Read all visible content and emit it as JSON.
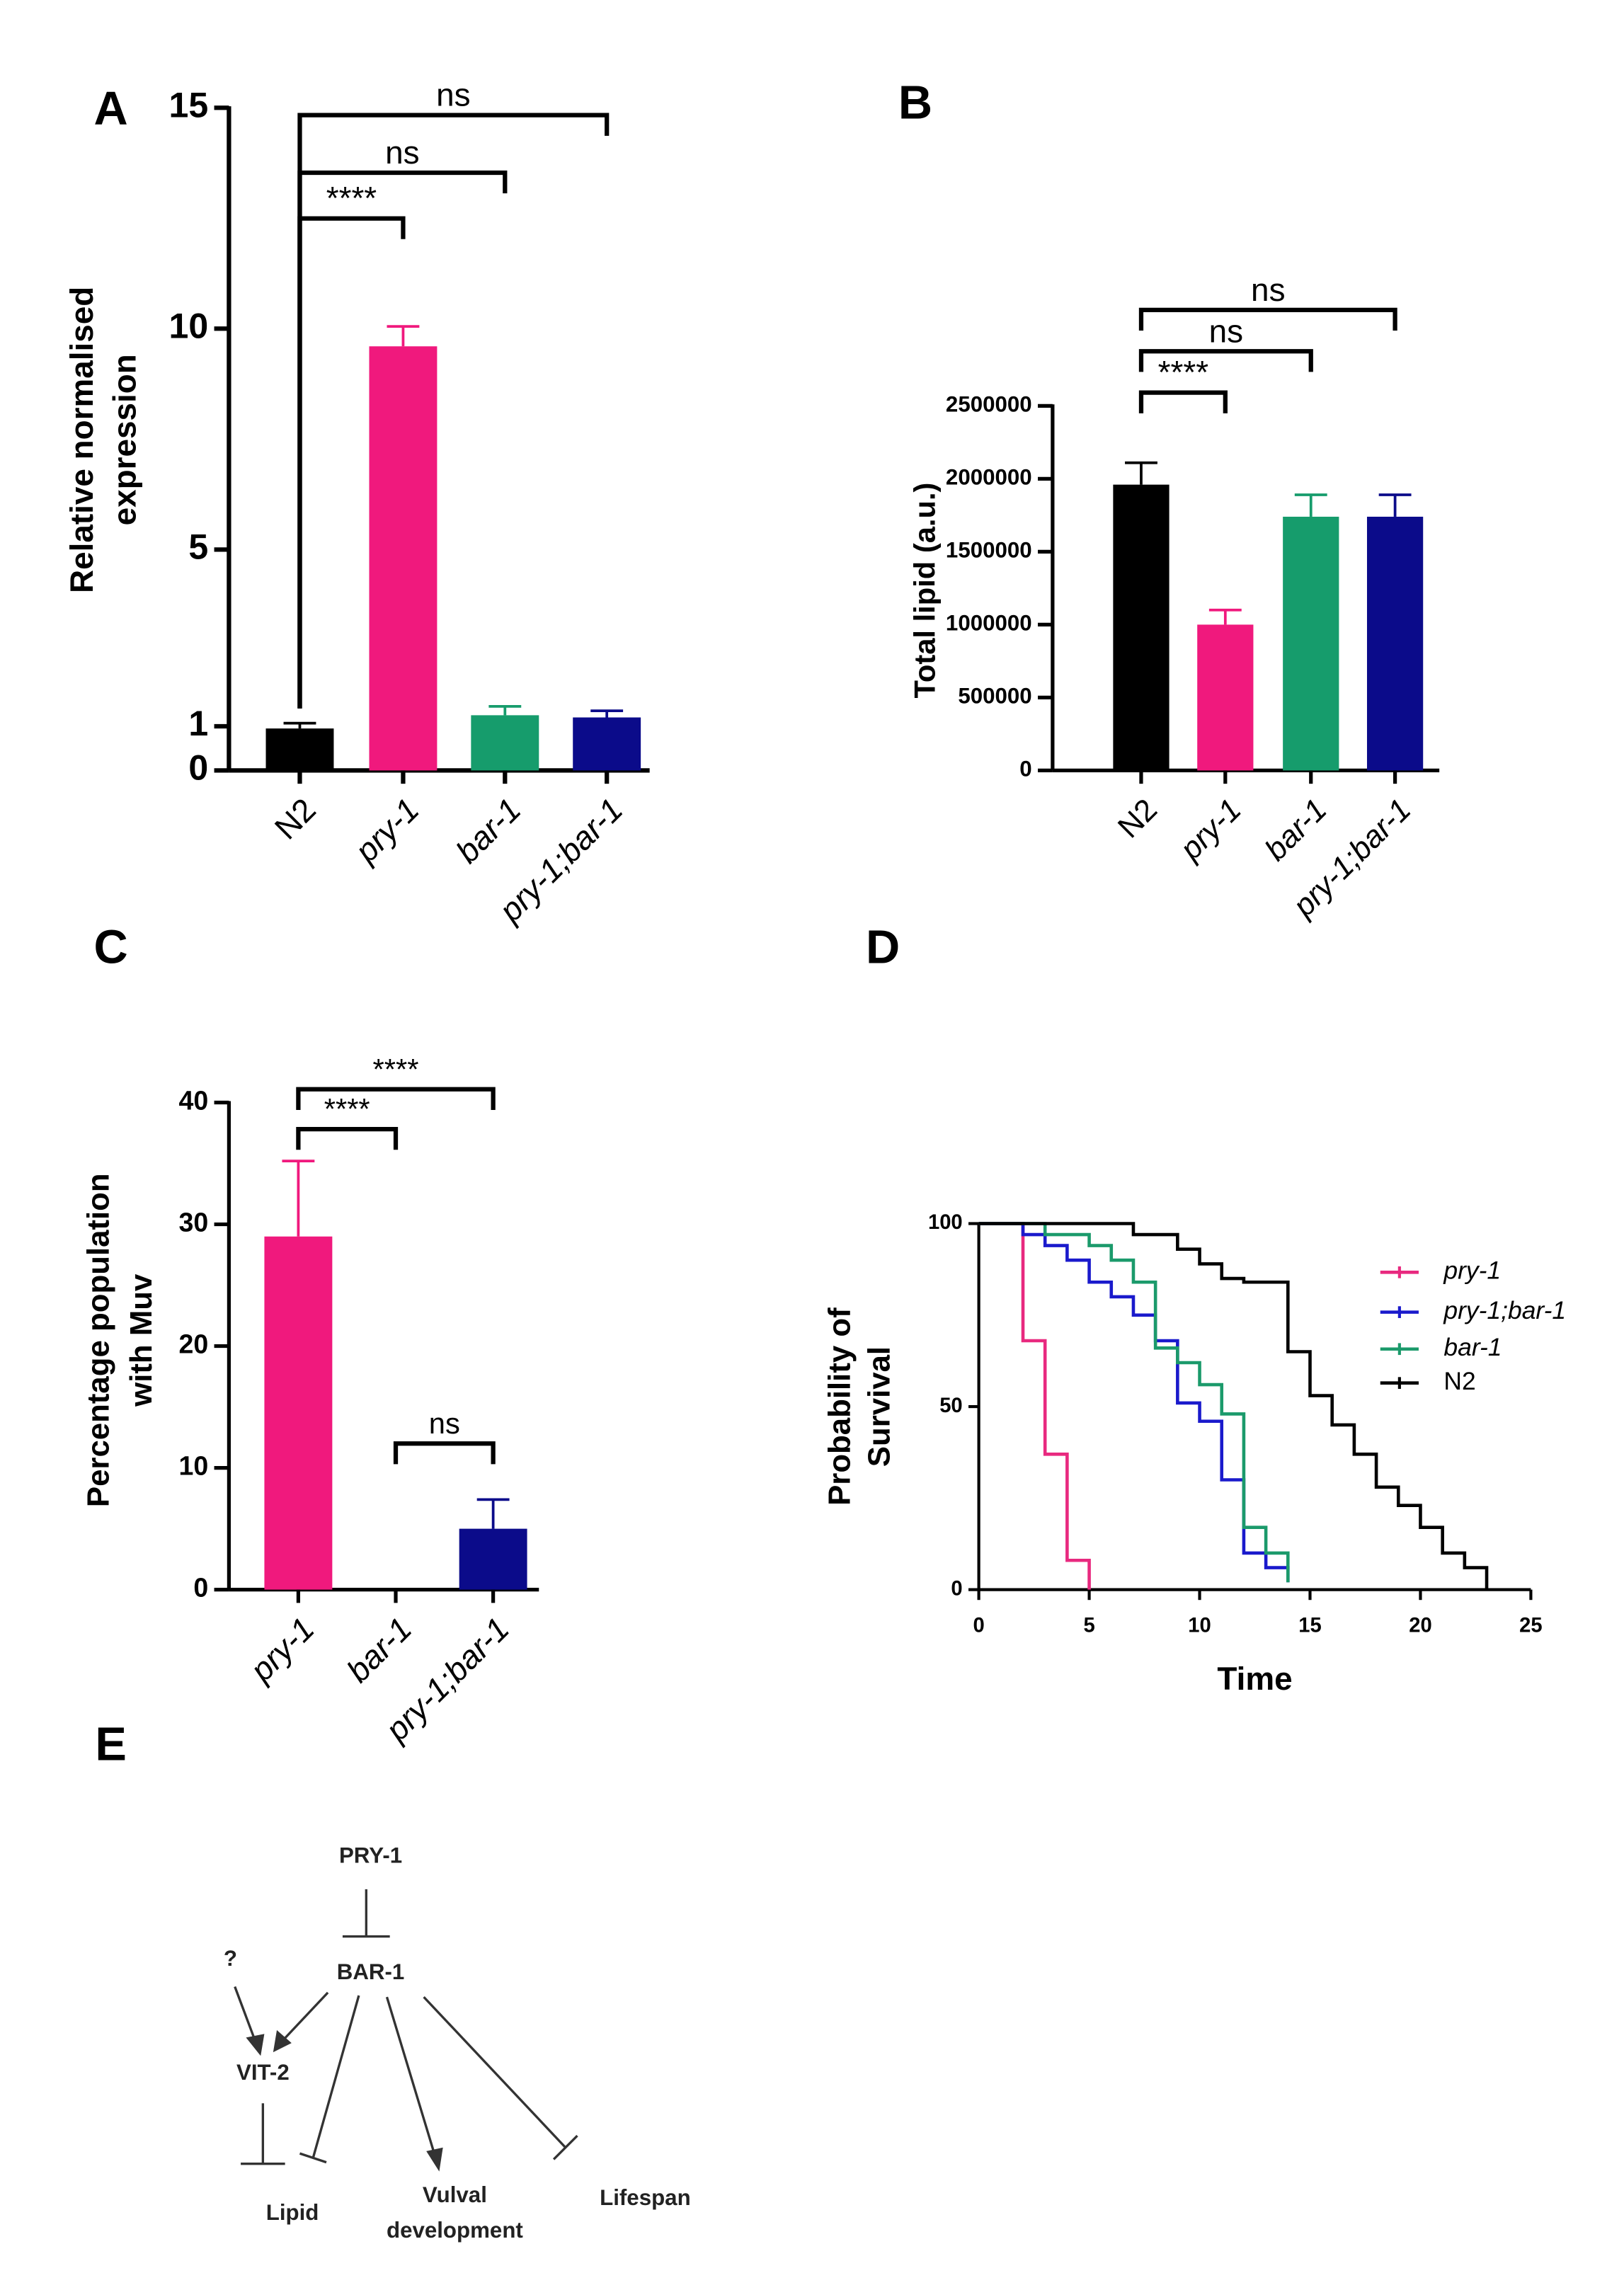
{
  "chart_data": [
    {
      "type": "bar",
      "label": "A",
      "ylabel": [
        "Relative normalised",
        "expression"
      ],
      "categories": [
        "N2",
        "pry-1",
        "bar-1",
        "pry-1;bar-1"
      ],
      "category_style": [
        "normal",
        "italic",
        "italic",
        "italic"
      ],
      "values": [
        0.95,
        9.6,
        1.25,
        1.2
      ],
      "errors": [
        0.12,
        0.45,
        0.2,
        0.15
      ],
      "colors": [
        "#000000",
        "#f0197d",
        "#169c6c",
        "#0b0b8a"
      ],
      "ylim": [
        0,
        15
      ],
      "yticks": [
        0,
        1,
        5,
        10,
        15
      ],
      "brackets": [
        {
          "pair": [
            "N2",
            "pry-1"
          ],
          "label": "****"
        },
        {
          "pair": [
            "N2",
            "bar-1"
          ],
          "label": "ns"
        },
        {
          "pair": [
            "N2",
            "pry-1;bar-1"
          ],
          "label": "ns"
        }
      ]
    },
    {
      "type": "bar",
      "label": "B",
      "ylabel": [
        "Total lipid (a.u.)"
      ],
      "categories": [
        "N2",
        "pry-1",
        "bar-1",
        "pry-1;bar-1"
      ],
      "category_style": [
        "normal",
        "italic",
        "italic",
        "italic"
      ],
      "values": [
        1960000,
        1000000,
        1740000,
        1740000
      ],
      "errors": [
        150000,
        100000,
        150000,
        150000
      ],
      "colors": [
        "#000000",
        "#f0197d",
        "#169c6c",
        "#0b0b8a"
      ],
      "ylim": [
        0,
        2500000
      ],
      "yticks": [
        0,
        500000,
        1000000,
        1500000,
        2000000,
        2500000
      ],
      "brackets": [
        {
          "pair": [
            "N2",
            "pry-1"
          ],
          "label": "****"
        },
        {
          "pair": [
            "N2",
            "bar-1"
          ],
          "label": "ns"
        },
        {
          "pair": [
            "N2",
            "pry-1;bar-1"
          ],
          "label": "ns"
        }
      ]
    },
    {
      "type": "bar",
      "label": "C",
      "ylabel": [
        "Percentage population",
        "with  Muv"
      ],
      "categories": [
        "pry-1",
        "bar-1",
        "pry-1;bar-1"
      ],
      "category_style": [
        "italic",
        "italic",
        "italic"
      ],
      "values": [
        29,
        0,
        5
      ],
      "errors": [
        6.2,
        null,
        2.4
      ],
      "colors": [
        "#f0197d",
        "#169c6c",
        "#0b0b8a"
      ],
      "ylim": [
        0,
        40
      ],
      "yticks": [
        0,
        10,
        20,
        30,
        40
      ],
      "brackets": [
        {
          "pair": [
            "pry-1",
            "bar-1"
          ],
          "label": "****"
        },
        {
          "pair": [
            "pry-1",
            "pry-1;bar-1"
          ],
          "label": "****"
        },
        {
          "pair": [
            "bar-1",
            "pry-1;bar-1"
          ],
          "label": "ns"
        }
      ]
    },
    {
      "type": "step",
      "label": "D",
      "ylabel": [
        "Probability of",
        "Survival"
      ],
      "xlabel": "Time",
      "xlim": [
        0,
        25
      ],
      "xticks": [
        0,
        5,
        10,
        15,
        20,
        25
      ],
      "ylim": [
        0,
        100
      ],
      "yticks": [
        0,
        50,
        100
      ],
      "series": [
        {
          "name": "pry-1",
          "style": "italic",
          "color": "#e8297f",
          "x": [
            0,
            2,
            3,
            4,
            5
          ],
          "values": [
            100,
            68,
            37,
            8,
            0
          ]
        },
        {
          "name": "pry-1;bar-1",
          "style": "italic",
          "color": "#1a1acc",
          "x": [
            0,
            2,
            3,
            4,
            5,
            6,
            7,
            8,
            9,
            10,
            11,
            12,
            13,
            14
          ],
          "values": [
            100,
            97,
            94,
            90,
            84,
            80,
            75,
            68,
            51,
            46,
            30,
            10,
            6,
            2
          ]
        },
        {
          "name": "bar-1",
          "style": "italic",
          "color": "#1b9a6b",
          "x": [
            0,
            3,
            5,
            6,
            7,
            8,
            9,
            10,
            11,
            12,
            13,
            14
          ],
          "values": [
            100,
            97,
            94,
            90,
            84,
            66,
            62,
            56,
            48,
            17,
            10,
            2
          ]
        },
        {
          "name": "N2",
          "style": "normal",
          "color": "#000000",
          "x": [
            0,
            7,
            9,
            10,
            11,
            12,
            14,
            15,
            16,
            17,
            18,
            19,
            20,
            21,
            22,
            23
          ],
          "values": [
            100,
            97,
            93,
            89,
            85,
            84,
            65,
            53,
            45,
            37,
            28,
            23,
            17,
            10,
            6,
            0
          ]
        }
      ]
    }
  ],
  "diagram": {
    "label": "E",
    "nodes": [
      "PRY-1",
      "BAR-1",
      "?",
      "VIT-2",
      "Lipid",
      [
        "Vulval",
        "development"
      ],
      "Lifespan"
    ]
  }
}
